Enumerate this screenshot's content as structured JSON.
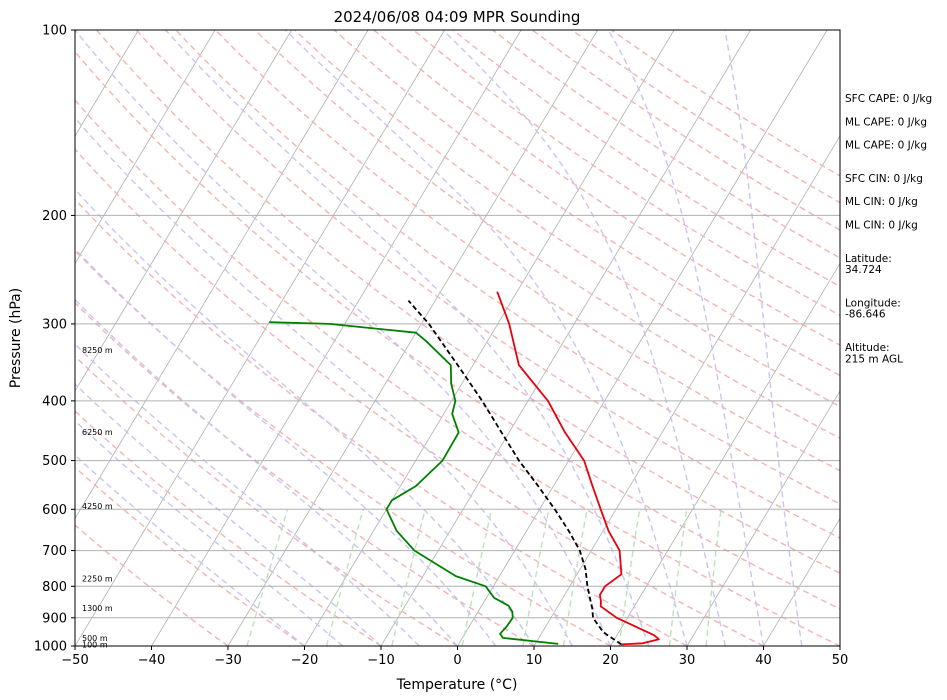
{
  "chart_data": {
    "type": "line",
    "subtype": "skew-T log-P sounding",
    "title": "2024/06/08 04:09 MPR Sounding",
    "xlabel": "Temperature (°C)",
    "ylabel": "Pressure (hPa)",
    "xlim": [
      -50,
      50
    ],
    "ylim": [
      1000,
      100
    ],
    "y_scale": "log",
    "x_ticks": [
      "−50",
      "−40",
      "−30",
      "−20",
      "−10",
      "0",
      "10",
      "20",
      "30",
      "40",
      "50"
    ],
    "y_ticks": [
      {
        "p": 100,
        "label": "100"
      },
      {
        "p": 200,
        "label": "200"
      },
      {
        "p": 300,
        "label": "300"
      },
      {
        "p": 400,
        "label": "400"
      },
      {
        "p": 500,
        "label": "500"
      },
      {
        "p": 600,
        "label": "600"
      },
      {
        "p": 700,
        "label": "700"
      },
      {
        "p": 800,
        "label": "800"
      },
      {
        "p": 900,
        "label": "900"
      },
      {
        "p": 1000,
        "label": "1000"
      }
    ],
    "height_labels": [
      {
        "p": 995,
        "text": "100 m"
      },
      {
        "p": 970,
        "text": "500 m"
      },
      {
        "p": 868,
        "text": "1300 m"
      },
      {
        "p": 777,
        "text": "2250 m"
      },
      {
        "p": 593,
        "text": "4250 m"
      },
      {
        "p": 449,
        "text": "6250 m"
      },
      {
        "p": 331,
        "text": "8250 m"
      }
    ],
    "series": [
      {
        "color": "#e8000b",
        "style": "solid",
        "points": [
          [
            21.3,
            994
          ],
          [
            24.0,
            990
          ],
          [
            25.8,
            975
          ],
          [
            24.8,
            960
          ],
          [
            18.6,
            900
          ],
          [
            15.6,
            862
          ],
          [
            15.3,
            848
          ],
          [
            14.6,
            826
          ],
          [
            14.6,
            800
          ],
          [
            15.8,
            765
          ],
          [
            13.7,
            700
          ],
          [
            10.7,
            650
          ],
          [
            8.0,
            600
          ],
          [
            5.1,
            550
          ],
          [
            2.0,
            500
          ],
          [
            -2.7,
            450
          ],
          [
            -7.4,
            400
          ],
          [
            -14.0,
            350
          ],
          [
            -18.5,
            300
          ],
          [
            -22.6,
            266
          ]
        ]
      },
      {
        "color": "#008000",
        "style": "solid",
        "points": [
          [
            13.0,
            992
          ],
          [
            5.3,
            970
          ],
          [
            4.6,
            955
          ],
          [
            4.9,
            930
          ],
          [
            5.0,
            900
          ],
          [
            4.5,
            880
          ],
          [
            3.5,
            860
          ],
          [
            1.0,
            835
          ],
          [
            -1.0,
            800
          ],
          [
            -5.7,
            770
          ],
          [
            -13.1,
            700
          ],
          [
            -17.0,
            650
          ],
          [
            -20.0,
            600
          ],
          [
            -20.0,
            580
          ],
          [
            -18.0,
            550
          ],
          [
            -16.5,
            500
          ],
          [
            -16.6,
            450
          ],
          [
            -18.9,
            420
          ],
          [
            -19.5,
            400
          ],
          [
            -21.4,
            375
          ],
          [
            -22.9,
            350
          ],
          [
            -28.0,
            320
          ],
          [
            -30.0,
            310
          ],
          [
            -42.0,
            300
          ],
          [
            -50.0,
            298
          ]
        ]
      },
      {
        "color": "#000000",
        "style": "dashed",
        "points": [
          [
            21.3,
            994
          ],
          [
            18.0,
            950
          ],
          [
            15.5,
            900
          ],
          [
            14.7,
            870
          ],
          [
            12.3,
            800
          ],
          [
            10.7,
            750
          ],
          [
            8.5,
            700
          ],
          [
            5.5,
            650
          ],
          [
            2.0,
            600
          ],
          [
            -2.0,
            550
          ],
          [
            -6.5,
            500
          ],
          [
            -11.0,
            450
          ],
          [
            -16.0,
            400
          ],
          [
            -22.0,
            350
          ],
          [
            -29.0,
            300
          ],
          [
            -33.5,
            275
          ]
        ]
      }
    ],
    "reference_lines": [
      {
        "kind": "isotherms",
        "color": "#b0b0b0"
      },
      {
        "kind": "dry adiabats",
        "color": "#f4b3b3",
        "style": "dashed"
      },
      {
        "kind": "moist adiabats",
        "color": "#c9c4f4",
        "style": "dashed"
      },
      {
        "kind": "mixing ratio lines",
        "color": "#bfe0bf",
        "style": "dashed"
      }
    ],
    "grid": true,
    "annotations": [
      {
        "group": 1,
        "text": "SFC CAPE: 0 J/kg"
      },
      {
        "group": 1,
        "text": "ML CAPE: 0 J/kg"
      },
      {
        "group": 1,
        "text": "ML CAPE: 0 J/kg"
      },
      {
        "group": 2,
        "text": "SFC CIN: 0 J/kg"
      },
      {
        "group": 2,
        "text": "ML CIN: 0 J/kg"
      },
      {
        "group": 2,
        "text": "ML CIN: 0 J/kg"
      },
      {
        "group": 3,
        "text": "Latitude:",
        "value": "34.724"
      },
      {
        "group": 4,
        "text": "Longitude:",
        "value": "-86.646"
      },
      {
        "group": 5,
        "text": "Altitude:",
        "value": "215 m AGL"
      }
    ]
  }
}
